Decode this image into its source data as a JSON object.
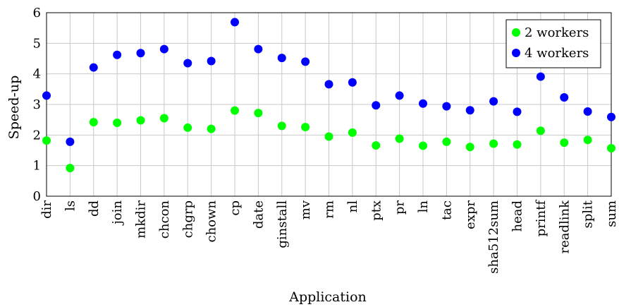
{
  "chart_data": {
    "type": "scatter",
    "categories": [
      "dir",
      "ls",
      "dd",
      "join",
      "mkdir",
      "chcon",
      "chgrp",
      "chown",
      "cp",
      "date",
      "ginstall",
      "mv",
      "rm",
      "nl",
      "ptx",
      "pr",
      "ln",
      "tac",
      "expr",
      "sha512sum",
      "head",
      "printf",
      "readlink",
      "split",
      "sum"
    ],
    "series": [
      {
        "name": "2 workers",
        "color": "#00ff00",
        "values": [
          1.82,
          0.92,
          2.42,
          2.4,
          2.48,
          2.55,
          2.24,
          2.2,
          2.8,
          2.72,
          2.3,
          2.26,
          1.95,
          2.08,
          1.66,
          1.88,
          1.65,
          1.78,
          1.61,
          1.72,
          1.69,
          2.14,
          1.75,
          1.84,
          1.57
        ]
      },
      {
        "name": "4 workers",
        "color": "#0000ff",
        "values": [
          3.29,
          1.78,
          4.21,
          4.62,
          4.68,
          4.81,
          4.35,
          4.42,
          5.69,
          4.81,
          4.52,
          4.4,
          3.66,
          3.72,
          2.97,
          3.29,
          3.03,
          2.94,
          2.81,
          3.1,
          2.76,
          3.91,
          3.23,
          2.77,
          2.59
        ]
      }
    ],
    "title": "",
    "xlabel": "Application",
    "ylabel": "Speed-up",
    "ylim": [
      0,
      6
    ],
    "yticks": [
      0,
      1,
      2,
      3,
      4,
      5,
      6
    ],
    "grid": true,
    "legend_position": "top-right"
  }
}
